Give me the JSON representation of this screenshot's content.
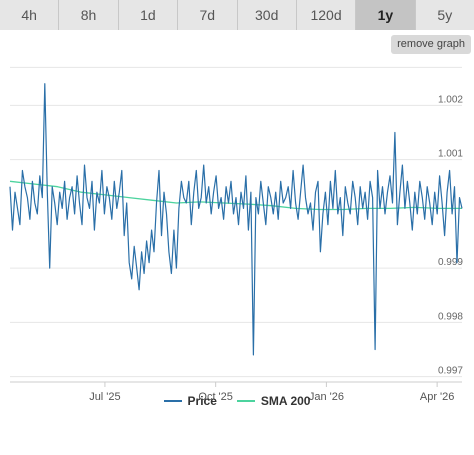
{
  "tabs": [
    {
      "label": "4h",
      "active": false
    },
    {
      "label": "8h",
      "active": false
    },
    {
      "label": "1d",
      "active": false
    },
    {
      "label": "7d",
      "active": false
    },
    {
      "label": "30d",
      "active": false
    },
    {
      "label": "120d",
      "active": false
    },
    {
      "label": "1y",
      "active": true
    },
    {
      "label": "5y",
      "active": false
    }
  ],
  "remove_graph_label": "remove graph",
  "colors": {
    "price": "#2a6fa8",
    "sma": "#4cd39e",
    "grid": "#e6e6e6"
  },
  "chart_data": {
    "type": "line",
    "x_ticks": [
      "Jul '25",
      "Oct '25",
      "Jan '26",
      "Apr '26"
    ],
    "y_ticks": [
      "0.997",
      "0.998",
      "0.999",
      "1.001",
      "1.002"
    ],
    "ylim": [
      0.9969,
      1.0028
    ],
    "grid": true,
    "legend_position": "bottom",
    "series": [
      {
        "name": "Price",
        "values": [
          1.0005,
          0.9997,
          1.0004,
          1.0001,
          0.9998,
          1.0008,
          1.0005,
          1.0003,
          0.9999,
          1.0006,
          1.0002,
          1.0,
          1.0007,
          1.0003,
          1.0024,
          1.0004,
          0.999,
          1.0005,
          1.0002,
          0.9998,
          1.0004,
          1.0001,
          1.0006,
          0.9999,
          1.0003,
          1.0005,
          1.0,
          1.0007,
          1.0002,
          0.9998,
          1.0009,
          1.0003,
          1.0001,
          1.0006,
          0.9997,
          1.0004,
          1.0002,
          1.0008,
          1.0,
          1.0005,
          1.0003,
          0.9999,
          1.0006,
          1.0001,
          1.0004,
          1.0008,
          0.9996,
          1.0002,
          0.9991,
          0.9988,
          0.9994,
          0.999,
          0.9986,
          0.9993,
          0.9989,
          0.9995,
          0.9991,
          0.9997,
          0.9993,
          1.0002,
          1.0008,
          0.9996,
          1.0004,
          1.0,
          0.9993,
          0.9989,
          0.9997,
          0.999,
          1.0001,
          1.0006,
          1.0003,
          1.0002,
          1.0006,
          0.9998,
          1.0004,
          1.0008,
          1.0001,
          1.0003,
          1.0009,
          1.0002,
          1.0005,
          1.0,
          1.0004,
          1.0007,
          1.0001,
          1.0003,
          0.9999,
          1.0005,
          1.0002,
          1.0006,
          1.0,
          1.0003,
          0.9998,
          1.0004,
          1.0001,
          1.0007,
          0.9997,
          1.0004,
          0.9974,
          1.0003,
          1.0,
          1.0006,
          1.0002,
          0.9998,
          1.0005,
          1.0003,
          1.0,
          1.0004,
          0.9999,
          1.0006,
          1.0002,
          1.0003,
          1.0005,
          1.0001,
          1.0008,
          1.0002,
          0.9999,
          1.0004,
          1.0009,
          1.0003,
          1.0,
          1.0002,
          0.9997,
          1.0004,
          1.0006,
          0.9993,
          1.0,
          1.0004,
          0.9998,
          1.0006,
          1.0001,
          1.0008,
          1.0,
          1.0003,
          0.9996,
          1.0005,
          1.0002,
          1.0,
          1.0006,
          1.0003,
          0.9998,
          1.0005,
          1.0001,
          1.0004,
          0.9999,
          1.0006,
          1.0003,
          0.9975,
          1.0008,
          1.0001,
          1.0005,
          1.0,
          1.0004,
          1.0007,
          1.0002,
          1.0015,
          0.9998,
          1.0004,
          1.0009,
          1.0001,
          1.0006,
          1.0002,
          0.9997,
          1.0004,
          1.0,
          1.0006,
          1.0003,
          0.9999,
          1.0005,
          1.0002,
          0.9998,
          1.0004,
          1.0,
          1.0007,
          1.0002,
          0.9996,
          1.0004,
          1.0008,
          1.0,
          1.0005,
          0.9991,
          1.0003,
          1.0001
        ],
        "color": "#2a6fa8"
      },
      {
        "name": "SMA 200",
        "values": [
          1.0006,
          1.00055,
          1.0005,
          1.0004,
          1.00035,
          1.0003,
          1.00025,
          1.0002,
          1.00022,
          1.0002,
          1.00018,
          1.00015,
          1.0001,
          1.00008,
          1.00008,
          1.0001,
          1.0001,
          1.00012,
          1.0001,
          1.0001
        ],
        "color": "#4cd39e"
      }
    ]
  }
}
